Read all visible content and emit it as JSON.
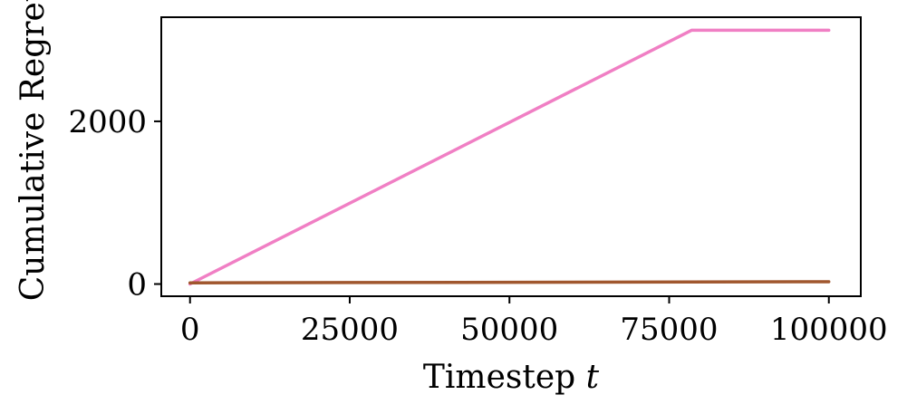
{
  "chart_data": {
    "type": "line",
    "xlabel": "Timestep",
    "xlabel_var": "t",
    "ylabel": "Cumulative Regret",
    "xlim": [
      -4500,
      105000
    ],
    "ylim": [
      -150,
      3280
    ],
    "xticks": [
      0,
      25000,
      50000,
      75000,
      100000
    ],
    "xtick_labels": [
      "0",
      "25000",
      "50000",
      "75000",
      "100000"
    ],
    "yticks": [
      0,
      2000
    ],
    "ytick_labels": [
      "0",
      "2000"
    ],
    "grid": false,
    "legend": "none",
    "series": [
      {
        "color": "#f07fc4",
        "x": [
          0,
          78500,
          100000
        ],
        "y": [
          0,
          3120,
          3120
        ]
      },
      {
        "color": "#a0572e",
        "x": [
          0,
          100000
        ],
        "y": [
          15,
          28
        ]
      }
    ]
  }
}
